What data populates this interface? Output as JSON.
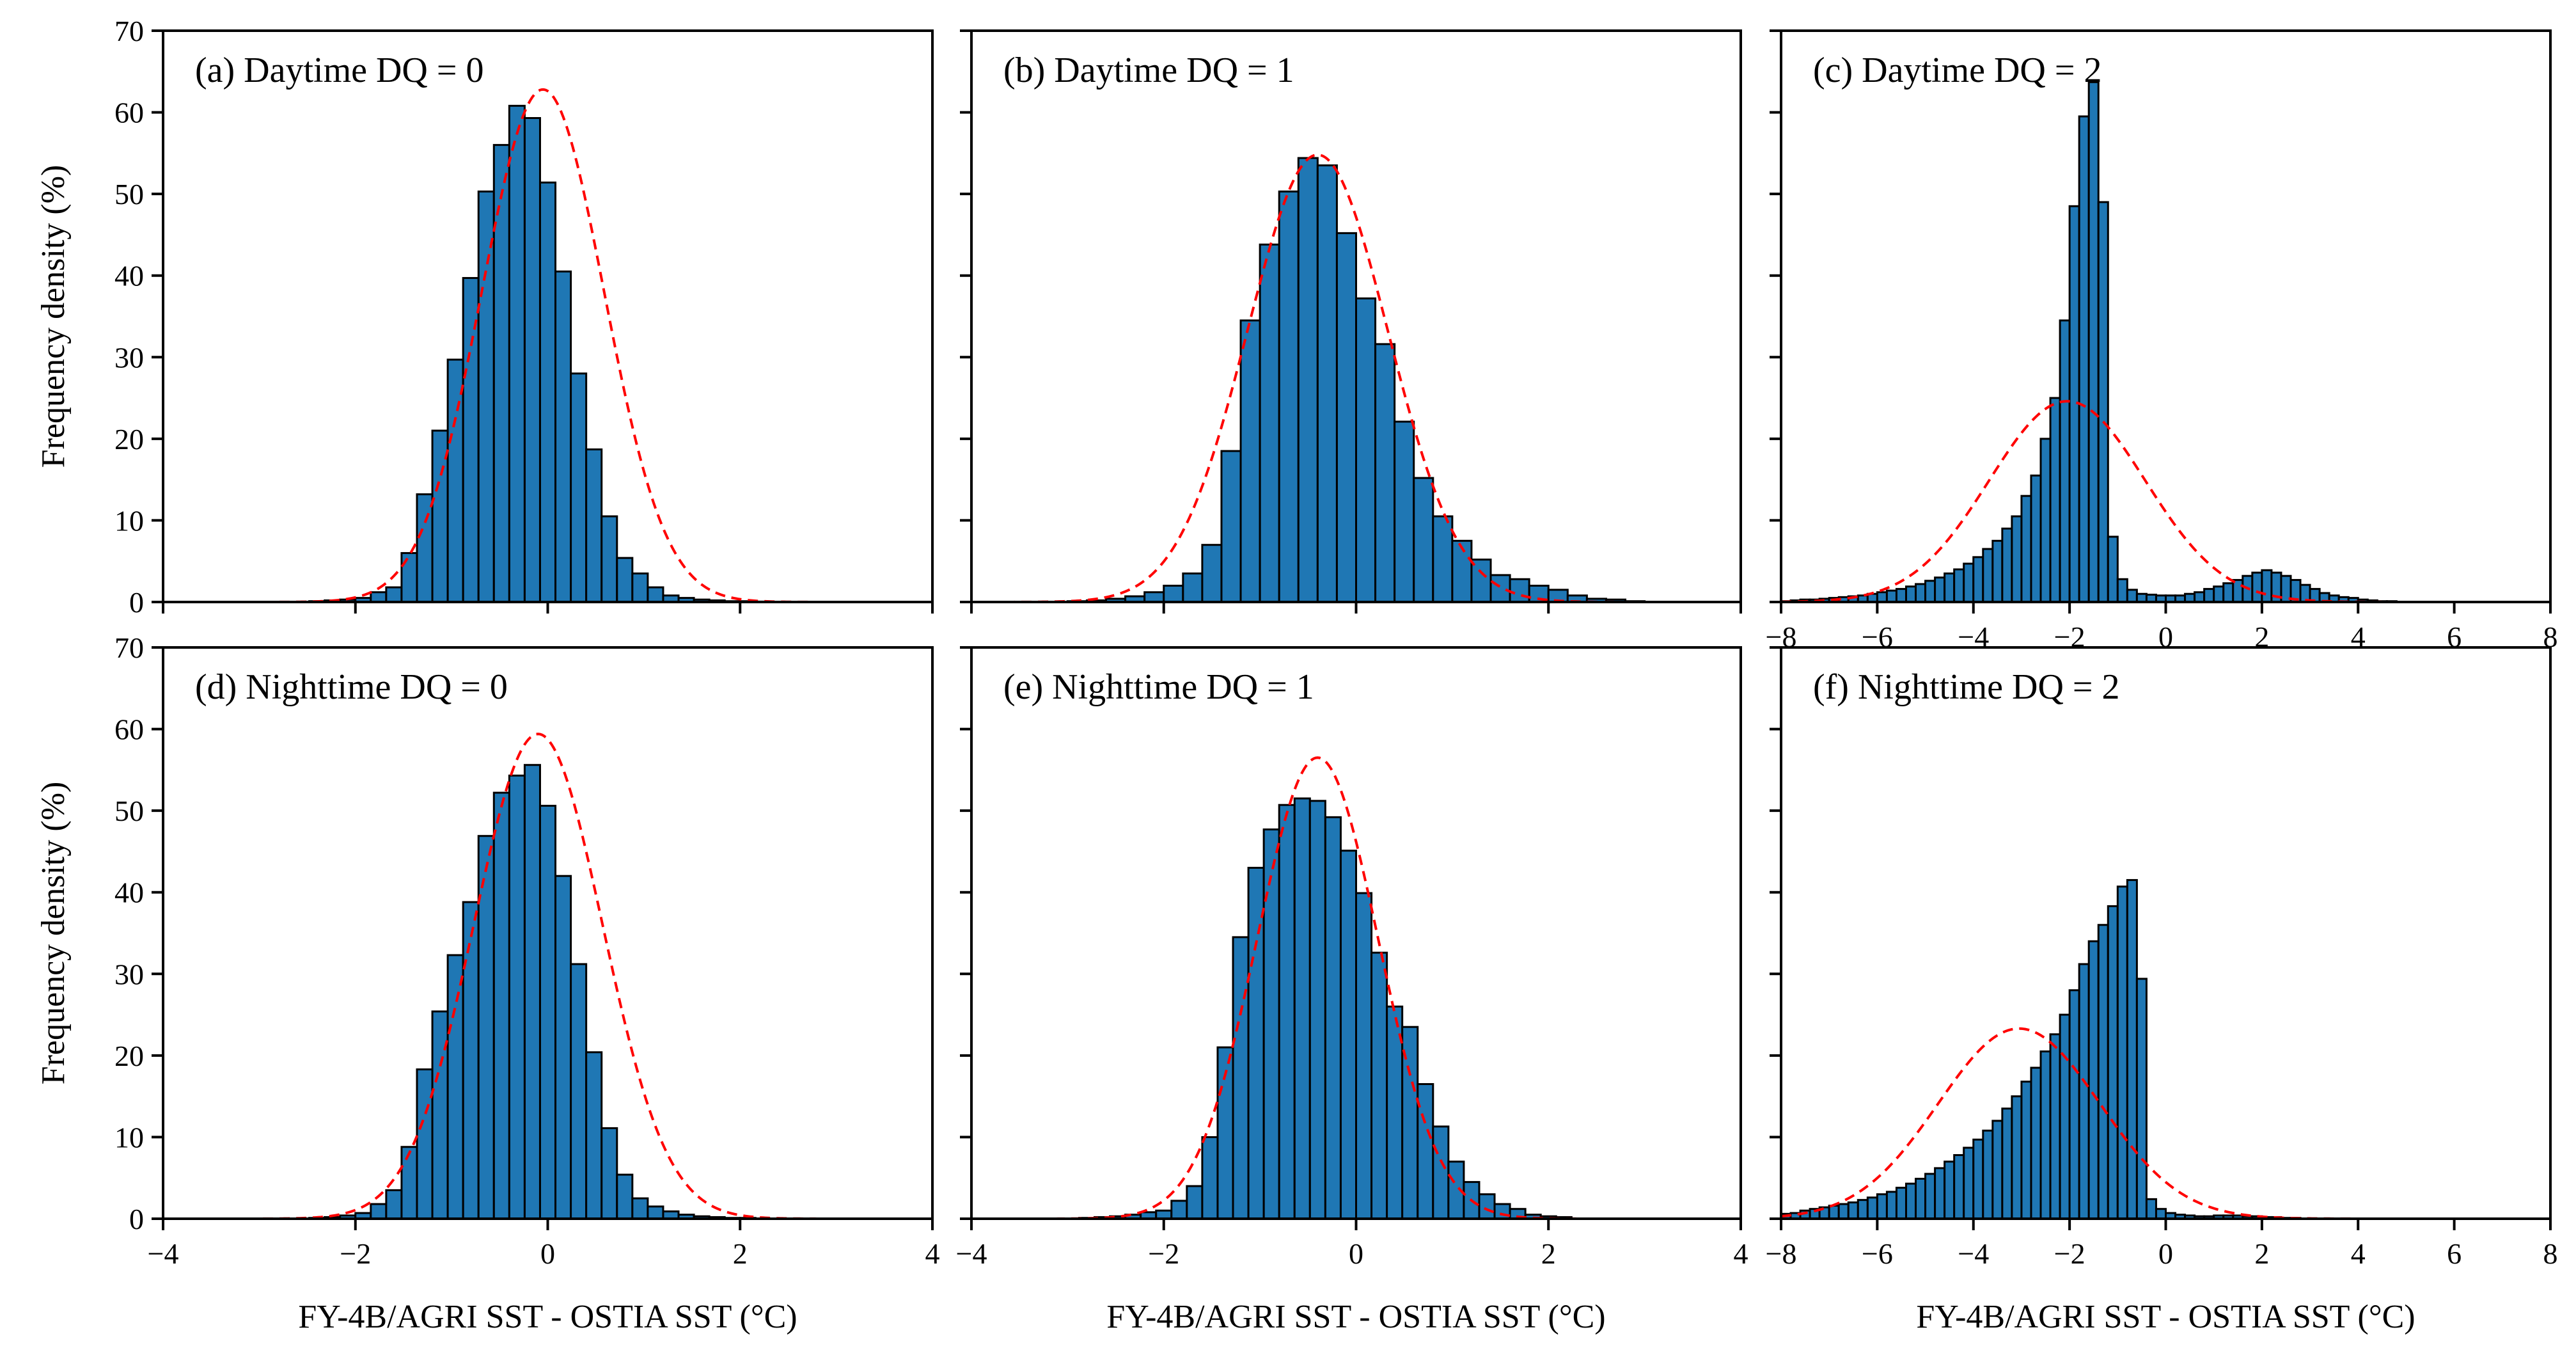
{
  "figure": {
    "bar_color": "#1f77b4",
    "edge_color": "#000000",
    "fit_color": "#ff0000",
    "panels_layout": "2x3"
  },
  "chart_data": [
    {
      "panel": "a",
      "type": "bar",
      "title": "(a) Daytime DQ = 0",
      "xlim": [
        -4,
        4
      ],
      "ylim": [
        0,
        70
      ],
      "xticks": [
        -4,
        -2,
        0,
        2,
        4
      ],
      "yticks": [
        0,
        10,
        20,
        30,
        40,
        50,
        60,
        70
      ],
      "xlabel": "",
      "ylabel": "Frequency density (%)",
      "bin_width": 0.16,
      "bins": [
        [
          -2.48,
          0.1
        ],
        [
          -2.32,
          0.2
        ],
        [
          -2.16,
          0.3
        ],
        [
          -2.0,
          0.5
        ],
        [
          -1.84,
          1.2
        ],
        [
          -1.68,
          1.8
        ],
        [
          -1.52,
          6.0
        ],
        [
          -1.36,
          13.2
        ],
        [
          -1.2,
          21.0
        ],
        [
          -1.04,
          29.7
        ],
        [
          -0.88,
          39.7
        ],
        [
          -0.72,
          50.3
        ],
        [
          -0.56,
          56.0
        ],
        [
          -0.4,
          60.8
        ],
        [
          -0.24,
          59.3
        ],
        [
          -0.08,
          51.4
        ],
        [
          0.08,
          40.5
        ],
        [
          0.24,
          28.0
        ],
        [
          0.4,
          18.7
        ],
        [
          0.56,
          10.5
        ],
        [
          0.72,
          5.4
        ],
        [
          0.88,
          3.5
        ],
        [
          1.04,
          1.8
        ],
        [
          1.2,
          0.8
        ],
        [
          1.36,
          0.5
        ],
        [
          1.52,
          0.3
        ],
        [
          1.68,
          0.2
        ],
        [
          1.84,
          0.1
        ],
        [
          2.0,
          0.1
        ],
        [
          2.16,
          0.05
        ]
      ],
      "fit": {
        "mean": -0.05,
        "std": 0.635,
        "peak": 62.8
      }
    },
    {
      "panel": "b",
      "type": "bar",
      "title": "(b) Daytime DQ = 1",
      "xlim": [
        -4,
        4
      ],
      "ylim": [
        0,
        70
      ],
      "xticks": [
        -4,
        -2,
        0,
        2,
        4
      ],
      "yticks": [
        0,
        10,
        20,
        30,
        40,
        50,
        60,
        70
      ],
      "xlabel": "",
      "ylabel": "",
      "bin_width": 0.2,
      "bins": [
        [
          -3.0,
          0.1
        ],
        [
          -2.8,
          0.2
        ],
        [
          -2.6,
          0.4
        ],
        [
          -2.4,
          0.7
        ],
        [
          -2.2,
          1.2
        ],
        [
          -2.0,
          2.0
        ],
        [
          -1.8,
          3.5
        ],
        [
          -1.6,
          7.0
        ],
        [
          -1.4,
          18.5
        ],
        [
          -1.2,
          34.5
        ],
        [
          -1.0,
          43.8
        ],
        [
          -0.8,
          50.3
        ],
        [
          -0.6,
          54.4
        ],
        [
          -0.4,
          53.5
        ],
        [
          -0.2,
          45.2
        ],
        [
          0.0,
          37.2
        ],
        [
          0.2,
          31.6
        ],
        [
          0.4,
          22.1
        ],
        [
          0.6,
          15.2
        ],
        [
          0.8,
          10.5
        ],
        [
          1.0,
          7.5
        ],
        [
          1.2,
          5.2
        ],
        [
          1.4,
          3.3
        ],
        [
          1.6,
          2.8
        ],
        [
          1.8,
          2.0
        ],
        [
          2.0,
          1.5
        ],
        [
          2.2,
          0.8
        ],
        [
          2.4,
          0.4
        ],
        [
          2.6,
          0.3
        ],
        [
          2.8,
          0.1
        ]
      ],
      "fit": {
        "mean": -0.4,
        "std": 0.73,
        "peak": 54.8
      }
    },
    {
      "panel": "c",
      "type": "bar",
      "title": "(c) Daytime DQ = 2",
      "xlim": [
        -8,
        8
      ],
      "ylim": [
        0,
        70
      ],
      "xticks": [
        -8,
        -6,
        -4,
        -2,
        0,
        2,
        4,
        6,
        8
      ],
      "yticks": [
        0,
        10,
        20,
        30,
        40,
        50,
        60,
        70
      ],
      "xlabel": "",
      "ylabel": "",
      "bin_width": 0.2,
      "bins": [
        [
          -8.0,
          0.1
        ],
        [
          -7.8,
          0.2
        ],
        [
          -7.6,
          0.3
        ],
        [
          -7.4,
          0.3
        ],
        [
          -7.2,
          0.4
        ],
        [
          -7.0,
          0.5
        ],
        [
          -6.8,
          0.6
        ],
        [
          -6.6,
          0.7
        ],
        [
          -6.4,
          0.8
        ],
        [
          -6.2,
          1.0
        ],
        [
          -6.0,
          1.2
        ],
        [
          -5.8,
          1.4
        ],
        [
          -5.6,
          1.6
        ],
        [
          -5.4,
          1.9
        ],
        [
          -5.2,
          2.2
        ],
        [
          -5.0,
          2.6
        ],
        [
          -4.8,
          3.0
        ],
        [
          -4.6,
          3.5
        ],
        [
          -4.4,
          4.0
        ],
        [
          -4.2,
          4.7
        ],
        [
          -4.0,
          5.5
        ],
        [
          -3.8,
          6.5
        ],
        [
          -3.6,
          7.5
        ],
        [
          -3.4,
          9.0
        ],
        [
          -3.2,
          10.5
        ],
        [
          -3.0,
          13.0
        ],
        [
          -2.8,
          15.5
        ],
        [
          -2.6,
          20.0
        ],
        [
          -2.4,
          25.0
        ],
        [
          -2.2,
          34.5
        ],
        [
          -2.0,
          48.5
        ],
        [
          -1.8,
          59.5
        ],
        [
          -1.6,
          63.7
        ],
        [
          -1.4,
          49.0
        ],
        [
          -1.2,
          8.0
        ],
        [
          -1.0,
          2.8
        ],
        [
          -0.8,
          1.5
        ],
        [
          -0.6,
          1.0
        ],
        [
          -0.4,
          0.9
        ],
        [
          -0.2,
          0.8
        ],
        [
          0.0,
          0.8
        ],
        [
          0.2,
          0.8
        ],
        [
          0.4,
          1.0
        ],
        [
          0.6,
          1.2
        ],
        [
          0.8,
          1.6
        ],
        [
          1.0,
          1.9
        ],
        [
          1.2,
          2.3
        ],
        [
          1.4,
          2.7
        ],
        [
          1.6,
          3.2
        ],
        [
          1.8,
          3.6
        ],
        [
          2.0,
          3.9
        ],
        [
          2.2,
          3.6
        ],
        [
          2.4,
          3.2
        ],
        [
          2.6,
          2.7
        ],
        [
          2.8,
          2.1
        ],
        [
          3.0,
          1.6
        ],
        [
          3.2,
          1.1
        ],
        [
          3.4,
          0.8
        ],
        [
          3.6,
          0.6
        ],
        [
          3.8,
          0.5
        ],
        [
          4.0,
          0.3
        ],
        [
          4.2,
          0.2
        ],
        [
          4.4,
          0.1
        ],
        [
          4.6,
          0.1
        ]
      ],
      "fit": {
        "mean": -2.05,
        "std": 1.62,
        "peak": 24.6
      }
    },
    {
      "panel": "d",
      "type": "bar",
      "title": "(d) Nighttime DQ = 0",
      "xlim": [
        -4,
        4
      ],
      "ylim": [
        0,
        70
      ],
      "xticks": [
        -4,
        -2,
        0,
        2,
        4
      ],
      "yticks": [
        0,
        10,
        20,
        30,
        40,
        50,
        60,
        70
      ],
      "xlabel": "FY-4B/AGRI SST - OSTIA SST (°C)",
      "ylabel": "Frequency density (%)",
      "bin_width": 0.16,
      "bins": [
        [
          -2.48,
          0.1
        ],
        [
          -2.32,
          0.2
        ],
        [
          -2.16,
          0.4
        ],
        [
          -2.0,
          0.7
        ],
        [
          -1.84,
          1.8
        ],
        [
          -1.68,
          3.5
        ],
        [
          -1.52,
          8.8
        ],
        [
          -1.36,
          18.3
        ],
        [
          -1.2,
          25.4
        ],
        [
          -1.04,
          32.3
        ],
        [
          -0.88,
          38.8
        ],
        [
          -0.72,
          46.9
        ],
        [
          -0.56,
          52.2
        ],
        [
          -0.4,
          54.3
        ],
        [
          -0.24,
          55.6
        ],
        [
          -0.08,
          50.6
        ],
        [
          0.08,
          42.0
        ],
        [
          0.24,
          31.2
        ],
        [
          0.4,
          20.4
        ],
        [
          0.56,
          11.1
        ],
        [
          0.72,
          5.4
        ],
        [
          0.88,
          2.5
        ],
        [
          1.04,
          1.5
        ],
        [
          1.2,
          0.9
        ],
        [
          1.36,
          0.5
        ],
        [
          1.52,
          0.3
        ],
        [
          1.68,
          0.2
        ],
        [
          1.84,
          0.1
        ],
        [
          2.0,
          0.1
        ]
      ],
      "fit": {
        "mean": -0.1,
        "std": 0.67,
        "peak": 59.4
      }
    },
    {
      "panel": "e",
      "type": "bar",
      "title": "(e) Nighttime DQ = 1",
      "xlim": [
        -4,
        4
      ],
      "ylim": [
        0,
        70
      ],
      "xticks": [
        -4,
        -2,
        0,
        2,
        4
      ],
      "yticks": [
        0,
        10,
        20,
        30,
        40,
        50,
        60,
        70
      ],
      "xlabel": "FY-4B/AGRI SST - OSTIA SST (°C)",
      "ylabel": "",
      "bin_width": 0.16,
      "bins": [
        [
          -2.88,
          0.1
        ],
        [
          -2.72,
          0.2
        ],
        [
          -2.56,
          0.3
        ],
        [
          -2.4,
          0.5
        ],
        [
          -2.24,
          0.8
        ],
        [
          -2.08,
          1.0
        ],
        [
          -1.92,
          2.2
        ],
        [
          -1.76,
          4.0
        ],
        [
          -1.6,
          10.0
        ],
        [
          -1.44,
          21.0
        ],
        [
          -1.28,
          34.5
        ],
        [
          -1.12,
          43.0
        ],
        [
          -0.96,
          47.7
        ],
        [
          -0.8,
          50.7
        ],
        [
          -0.64,
          51.5
        ],
        [
          -0.48,
          51.2
        ],
        [
          -0.32,
          49.2
        ],
        [
          -0.16,
          45.1
        ],
        [
          0.0,
          39.9
        ],
        [
          0.16,
          32.6
        ],
        [
          0.32,
          26.0
        ],
        [
          0.48,
          23.5
        ],
        [
          0.64,
          16.5
        ],
        [
          0.8,
          11.3
        ],
        [
          0.96,
          7.0
        ],
        [
          1.12,
          4.5
        ],
        [
          1.28,
          3.0
        ],
        [
          1.44,
          1.8
        ],
        [
          1.6,
          1.2
        ],
        [
          1.76,
          0.5
        ],
        [
          1.92,
          0.3
        ],
        [
          2.08,
          0.2
        ]
      ],
      "fit": {
        "mean": -0.4,
        "std": 0.63,
        "peak": 56.5
      }
    },
    {
      "panel": "f",
      "type": "bar",
      "title": "(f) Nighttime DQ = 2",
      "xlim": [
        -8,
        8
      ],
      "ylim": [
        0,
        70
      ],
      "xticks": [
        -8,
        -6,
        -4,
        -2,
        0,
        2,
        4,
        6,
        8
      ],
      "yticks": [
        0,
        10,
        20,
        30,
        40,
        50,
        60,
        70
      ],
      "xlabel": "FY-4B/AGRI SST - OSTIA SST (°C)",
      "ylabel": "",
      "bin_width": 0.2,
      "bins": [
        [
          -8.0,
          0.6
        ],
        [
          -7.8,
          0.7
        ],
        [
          -7.6,
          1.0
        ],
        [
          -7.4,
          1.2
        ],
        [
          -7.2,
          1.4
        ],
        [
          -7.0,
          1.6
        ],
        [
          -6.8,
          1.8
        ],
        [
          -6.6,
          2.0
        ],
        [
          -6.4,
          2.3
        ],
        [
          -6.2,
          2.6
        ],
        [
          -6.0,
          3.0
        ],
        [
          -5.8,
          3.3
        ],
        [
          -5.6,
          3.8
        ],
        [
          -5.4,
          4.3
        ],
        [
          -5.2,
          4.9
        ],
        [
          -5.0,
          5.5
        ],
        [
          -4.8,
          6.2
        ],
        [
          -4.6,
          7.0
        ],
        [
          -4.4,
          7.8
        ],
        [
          -4.2,
          8.7
        ],
        [
          -4.0,
          9.7
        ],
        [
          -3.8,
          10.8
        ],
        [
          -3.6,
          12.0
        ],
        [
          -3.4,
          13.5
        ],
        [
          -3.2,
          15.0
        ],
        [
          -3.0,
          16.8
        ],
        [
          -2.8,
          18.5
        ],
        [
          -2.6,
          20.5
        ],
        [
          -2.4,
          22.6
        ],
        [
          -2.2,
          25.0
        ],
        [
          -2.0,
          28.0
        ],
        [
          -1.8,
          31.2
        ],
        [
          -1.6,
          34.0
        ],
        [
          -1.4,
          36.0
        ],
        [
          -1.2,
          38.3
        ],
        [
          -1.0,
          40.7
        ],
        [
          -0.8,
          41.5
        ],
        [
          -0.6,
          29.4
        ],
        [
          -0.4,
          2.4
        ],
        [
          -0.2,
          1.2
        ],
        [
          0.0,
          0.7
        ],
        [
          0.2,
          0.5
        ],
        [
          0.4,
          0.4
        ],
        [
          0.6,
          0.3
        ],
        [
          0.8,
          0.3
        ],
        [
          1.0,
          0.4
        ],
        [
          1.2,
          0.4
        ],
        [
          1.4,
          0.4
        ],
        [
          1.6,
          0.3
        ],
        [
          1.8,
          0.3
        ],
        [
          2.0,
          0.2
        ],
        [
          2.2,
          0.2
        ],
        [
          2.4,
          0.1
        ],
        [
          2.6,
          0.1
        ]
      ],
      "fit": {
        "mean": -3.05,
        "std": 1.68,
        "peak": 23.3
      }
    }
  ]
}
